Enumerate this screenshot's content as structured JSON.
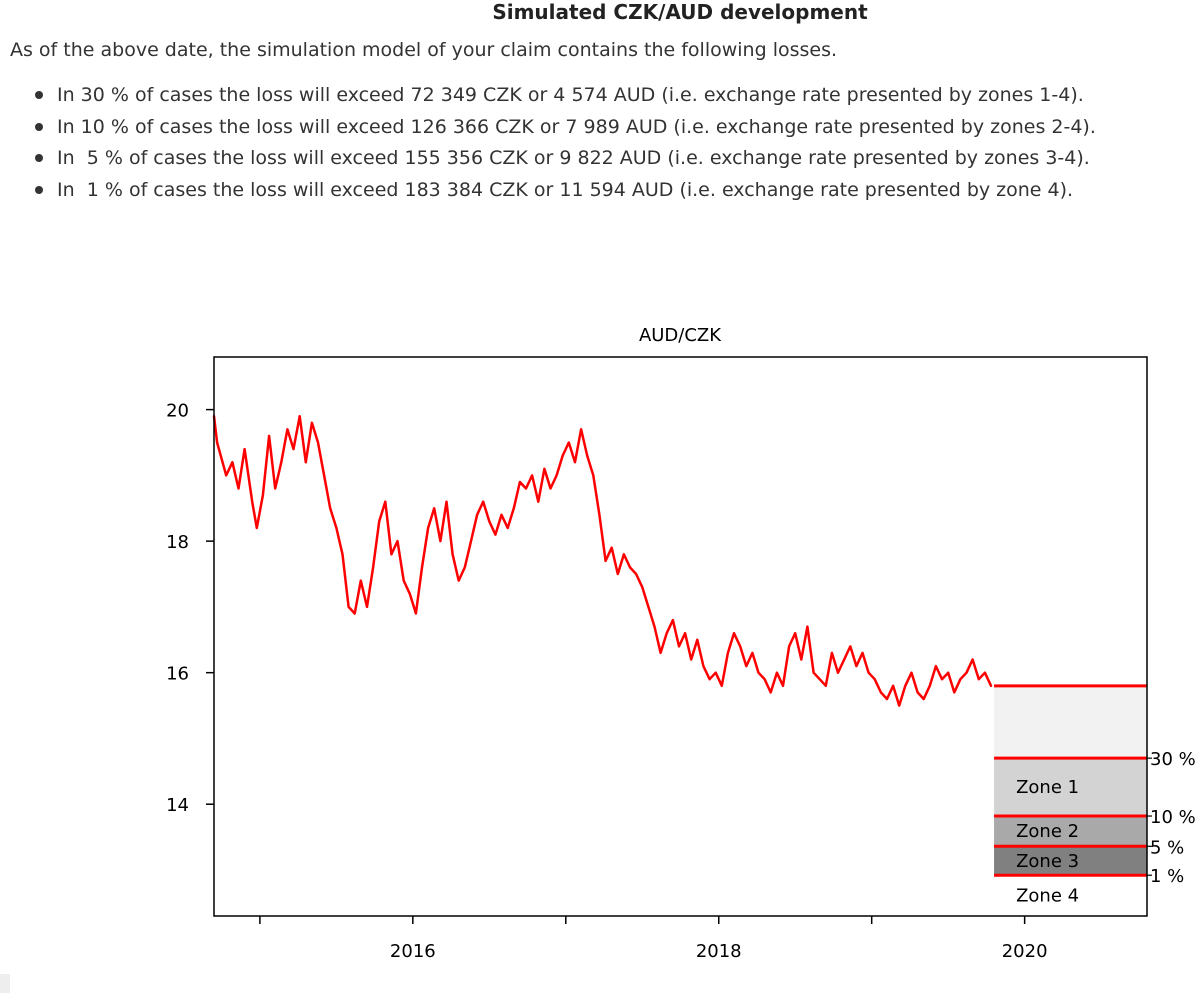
{
  "heading": "Simulated CZK/AUD development",
  "intro": "As of the above date, the simulation model of your claim contains the following losses.",
  "loss_items": [
    "In 30 % of cases the loss will exceed 72 349 CZK or 4 574 AUD (i.e. exchange rate presented by zones 1-4).",
    "In 10 % of cases the loss will exceed 126 366 CZK or 7 989 AUD (i.e. exchange rate presented by zones 2-4).",
    "In  5 % of cases the loss will exceed 155 356 CZK or 9 822 AUD (i.e. exchange rate presented by zones 3-4).",
    "In  1 % of cases the loss will exceed 183 384 CZK or 11 594 AUD (i.e. exchange rate presented by zone 4)."
  ],
  "chart_data": {
    "type": "line",
    "title": "AUD/CZK",
    "xlabel": "",
    "ylabel": "",
    "xlim": [
      2014.7,
      2020.8
    ],
    "ylim": [
      12.3,
      20.8
    ],
    "x_ticks": [
      2015,
      2016,
      2017,
      2018,
      2019,
      2020
    ],
    "x_tick_labels": [
      "",
      "2016",
      "",
      "2018",
      "",
      "2020"
    ],
    "y_ticks": [
      14,
      16,
      18,
      20
    ],
    "y_tick_labels": [
      "14",
      "16",
      "18",
      "20"
    ],
    "grid": false,
    "line_color": "#ff0000",
    "series": [
      {
        "x": [
          2014.7,
          2014.72,
          2014.78,
          2014.82,
          2014.86,
          2014.9,
          2014.95,
          2014.98,
          2015.02,
          2015.06,
          2015.1,
          2015.14,
          2015.18,
          2015.22,
          2015.26,
          2015.3,
          2015.34,
          2015.38,
          2015.42,
          2015.46,
          2015.5,
          2015.54,
          2015.58,
          2015.62,
          2015.66,
          2015.7,
          2015.74,
          2015.78,
          2015.82,
          2015.86,
          2015.9,
          2015.94,
          2015.98,
          2016.02,
          2016.06,
          2016.1,
          2016.14,
          2016.18,
          2016.22,
          2016.26,
          2016.3,
          2016.34,
          2016.38,
          2016.42,
          2016.46,
          2016.5,
          2016.54,
          2016.58,
          2016.62,
          2016.66,
          2016.7,
          2016.74,
          2016.78,
          2016.82,
          2016.86,
          2016.9,
          2016.94,
          2016.98,
          2017.02,
          2017.06,
          2017.1,
          2017.14,
          2017.18,
          2017.22,
          2017.26,
          2017.3,
          2017.34,
          2017.38,
          2017.42,
          2017.46,
          2017.5,
          2017.54,
          2017.58,
          2017.62,
          2017.66,
          2017.7,
          2017.74,
          2017.78,
          2017.82,
          2017.86,
          2017.9,
          2017.94,
          2017.98,
          2018.02,
          2018.06,
          2018.1,
          2018.14,
          2018.18,
          2018.22,
          2018.26,
          2018.3,
          2018.34,
          2018.38,
          2018.42,
          2018.46,
          2018.5,
          2018.54,
          2018.58,
          2018.62,
          2018.66,
          2018.7,
          2018.74,
          2018.78,
          2018.82,
          2018.86,
          2018.9,
          2018.94,
          2018.98,
          2019.02,
          2019.06,
          2019.1,
          2019.14,
          2019.18,
          2019.22,
          2019.26,
          2019.3,
          2019.34,
          2019.38,
          2019.42,
          2019.46,
          2019.5,
          2019.54,
          2019.58,
          2019.62,
          2019.66,
          2019.7,
          2019.74,
          2019.78
        ],
        "values": [
          19.9,
          19.5,
          19.0,
          19.2,
          18.8,
          19.4,
          18.6,
          18.2,
          18.7,
          19.6,
          18.8,
          19.2,
          19.7,
          19.4,
          19.9,
          19.2,
          19.8,
          19.5,
          19.0,
          18.5,
          18.2,
          17.8,
          17.0,
          16.9,
          17.4,
          17.0,
          17.6,
          18.3,
          18.6,
          17.8,
          18.0,
          17.4,
          17.2,
          16.9,
          17.6,
          18.2,
          18.5,
          18.0,
          18.6,
          17.8,
          17.4,
          17.6,
          18.0,
          18.4,
          18.6,
          18.3,
          18.1,
          18.4,
          18.2,
          18.5,
          18.9,
          18.8,
          19.0,
          18.6,
          19.1,
          18.8,
          19.0,
          19.3,
          19.5,
          19.2,
          19.7,
          19.3,
          19.0,
          18.4,
          17.7,
          17.9,
          17.5,
          17.8,
          17.6,
          17.5,
          17.3,
          17.0,
          16.7,
          16.3,
          16.6,
          16.8,
          16.4,
          16.6,
          16.2,
          16.5,
          16.1,
          15.9,
          16.0,
          15.8,
          16.3,
          16.6,
          16.4,
          16.1,
          16.3,
          16.0,
          15.9,
          15.7,
          16.0,
          15.8,
          16.4,
          16.6,
          16.2,
          16.7,
          16.0,
          15.9,
          15.8,
          16.3,
          16.0,
          16.2,
          16.4,
          16.1,
          16.3,
          16.0,
          15.9,
          15.7,
          15.6,
          15.8,
          15.5,
          15.8,
          16.0,
          15.7,
          15.6,
          15.8,
          16.1,
          15.9,
          16.0,
          15.7,
          15.9,
          16.0,
          16.2,
          15.9,
          16.0,
          15.8
        ]
      }
    ],
    "zones": [
      {
        "label": "",
        "from": 14.7,
        "to": 15.8,
        "color": "#f2f2f2"
      },
      {
        "label": "Zone 1",
        "from": 13.82,
        "to": 14.7,
        "color": "#d3d3d3"
      },
      {
        "label": "Zone 2",
        "from": 13.36,
        "to": 13.82,
        "color": "#a9a9a9"
      },
      {
        "label": "Zone 3",
        "from": 12.92,
        "to": 13.36,
        "color": "#808080"
      },
      {
        "label": "Zone 4",
        "from": 12.3,
        "to": 12.92,
        "color": "#ffffff"
      }
    ],
    "zone_x_start": 2019.8,
    "threshold_lines": [
      {
        "value": 15.8,
        "label": ""
      },
      {
        "value": 14.7,
        "label": "30 %"
      },
      {
        "value": 13.82,
        "label": "10 %"
      },
      {
        "value": 13.36,
        "label": "5 %"
      },
      {
        "value": 12.92,
        "label": "1 %"
      }
    ]
  }
}
